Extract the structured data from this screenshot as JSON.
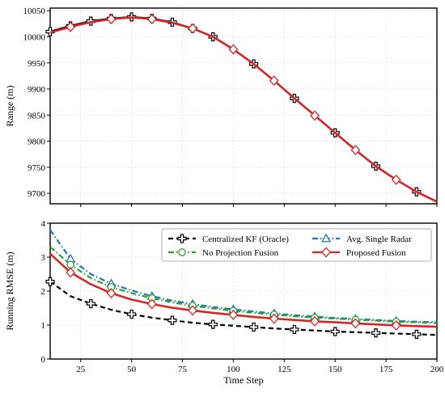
{
  "chart_data": [
    {
      "type": "line",
      "title": "",
      "xlabel": "",
      "ylabel": "Range (m)",
      "xlim": [
        10,
        200
      ],
      "ylim": [
        9680,
        10055
      ],
      "yticks": [
        9700,
        9750,
        9800,
        9850,
        9900,
        9950,
        10000,
        10050
      ],
      "grid": true,
      "series": [
        {
          "name": "Centralized KF (Oracle)",
          "color": "#000000",
          "marker": "plus",
          "x": [
            10,
            20,
            30,
            40,
            50,
            60,
            70,
            80,
            90,
            100,
            110,
            120,
            130,
            140,
            150,
            160,
            170,
            180,
            190,
            200
          ],
          "y": [
            10010,
            10021,
            10030,
            10035,
            10038,
            10035,
            10028,
            10016,
            10000,
            9976,
            9948,
            9916,
            9882,
            9849,
            9816,
            9783,
            9752,
            9726,
            9703,
            9684
          ],
          "marker_x": [
            10,
            20,
            30,
            40,
            50,
            60,
            70,
            80,
            90,
            110,
            130,
            150,
            170,
            190
          ]
        },
        {
          "name": "Proposed Fusion",
          "color": "#d62728",
          "marker": "diamond",
          "x": [
            10,
            20,
            30,
            40,
            50,
            60,
            70,
            80,
            90,
            100,
            110,
            120,
            130,
            140,
            150,
            160,
            170,
            180,
            190,
            200
          ],
          "y": [
            10008,
            10019,
            10028,
            10034,
            10037,
            10034,
            10027,
            10016,
            10000,
            9976,
            9948,
            9916,
            9882,
            9849,
            9816,
            9783,
            9752,
            9726,
            9703,
            9684
          ],
          "marker_x": [
            20,
            40,
            60,
            80,
            100,
            120,
            140,
            160,
            180
          ]
        }
      ]
    },
    {
      "type": "line",
      "title": "",
      "xlabel": "Time Step",
      "ylabel": "Running RMSE (m)",
      "xlim": [
        10,
        200
      ],
      "ylim": [
        0,
        4
      ],
      "xticks": [
        25,
        50,
        75,
        100,
        125,
        150,
        175,
        200
      ],
      "yticks": [
        0,
        1,
        2,
        3,
        4
      ],
      "grid": true,
      "legend": "top-right",
      "series": [
        {
          "name": "Centralized KF (Oracle)",
          "color": "#000000",
          "dash": "dashed",
          "marker": "plus",
          "x": [
            10,
            20,
            30,
            40,
            50,
            60,
            70,
            80,
            90,
            100,
            110,
            120,
            130,
            140,
            150,
            160,
            170,
            180,
            190,
            200
          ],
          "y": [
            2.28,
            1.85,
            1.63,
            1.45,
            1.32,
            1.22,
            1.14,
            1.07,
            1.02,
            0.98,
            0.94,
            0.9,
            0.87,
            0.84,
            0.81,
            0.79,
            0.77,
            0.75,
            0.73,
            0.71
          ],
          "marker_x": [
            10,
            30,
            50,
            70,
            90,
            110,
            130,
            150,
            170,
            190
          ]
        },
        {
          "name": "Avg. Single Radar",
          "color": "#1f77b4",
          "dash": "dashdot",
          "marker": "triangle",
          "x": [
            10,
            20,
            30,
            40,
            50,
            60,
            70,
            80,
            90,
            100,
            110,
            120,
            130,
            140,
            150,
            160,
            170,
            180,
            190,
            200
          ],
          "y": [
            3.8,
            2.95,
            2.5,
            2.22,
            2.02,
            1.85,
            1.72,
            1.62,
            1.53,
            1.46,
            1.4,
            1.34,
            1.29,
            1.25,
            1.21,
            1.18,
            1.15,
            1.12,
            1.1,
            1.08
          ],
          "marker_x": [
            20,
            40,
            60,
            80,
            100,
            120,
            140,
            160,
            180
          ]
        },
        {
          "name": "No Projection Fusion",
          "color": "#2ca02c",
          "dash": "dashdot",
          "marker": "circle",
          "x": [
            10,
            20,
            30,
            40,
            50,
            60,
            70,
            80,
            90,
            100,
            110,
            120,
            130,
            140,
            150,
            160,
            170,
            180,
            190,
            200
          ],
          "y": [
            3.3,
            2.78,
            2.38,
            2.12,
            1.94,
            1.79,
            1.67,
            1.57,
            1.49,
            1.42,
            1.36,
            1.31,
            1.26,
            1.22,
            1.19,
            1.16,
            1.13,
            1.1,
            1.08,
            1.06
          ],
          "marker_x": [
            20,
            40,
            60,
            80,
            100,
            120,
            140,
            160,
            180
          ]
        },
        {
          "name": "Proposed Fusion",
          "color": "#d62728",
          "dash": "solid",
          "marker": "diamond",
          "x": [
            10,
            20,
            30,
            40,
            50,
            60,
            70,
            80,
            90,
            100,
            110,
            120,
            130,
            140,
            150,
            160,
            170,
            180,
            190,
            200
          ],
          "y": [
            3.1,
            2.55,
            2.2,
            1.94,
            1.75,
            1.62,
            1.51,
            1.43,
            1.36,
            1.3,
            1.24,
            1.19,
            1.15,
            1.11,
            1.08,
            1.05,
            1.02,
            0.99,
            0.97,
            0.95
          ],
          "marker_x": [
            20,
            40,
            60,
            80,
            100,
            120,
            140,
            160,
            180
          ]
        }
      ]
    }
  ]
}
